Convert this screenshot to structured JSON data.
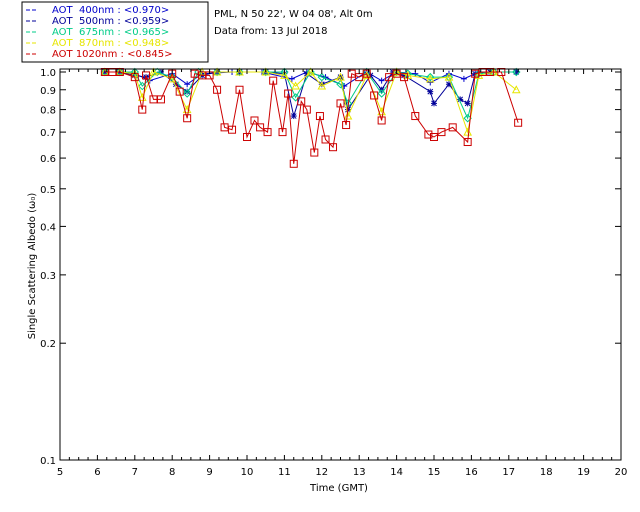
{
  "chart_data": {
    "type": "line",
    "header": {
      "site": "PML, N 50 22', W 04 08', Alt 0m",
      "date": "Data from: 13 Jul 2018"
    },
    "xlabel": "Time (GMT)",
    "ylabel": "Single Scattering Albedo (ω₀)",
    "xlim": [
      5,
      20
    ],
    "ylim": [
      0.1,
      1.0
    ],
    "yscale": "log",
    "xticks": [
      5,
      6,
      7,
      8,
      9,
      10,
      11,
      12,
      13,
      14,
      15,
      16,
      17,
      18,
      19,
      20
    ],
    "yticks": [
      {
        "v": 1.0,
        "label": "1.0"
      },
      {
        "v": 0.9,
        "label": "0.9"
      },
      {
        "v": 0.8,
        "label": "0.8"
      },
      {
        "v": 0.7,
        "label": "0.7"
      },
      {
        "v": 0.6,
        "label": "0.6"
      },
      {
        "v": 0.5,
        "label": "0.5"
      },
      {
        "v": 0.4,
        "label": "0.4"
      },
      {
        "v": 0.3,
        "label": "0.3"
      },
      {
        "v": 0.2,
        "label": "0.2"
      },
      {
        "v": 0.1,
        "label": "0.1"
      }
    ],
    "legend_position": "top-left",
    "series": [
      {
        "name": "AOT  400nm : <0.970>",
        "color": "#0000cc",
        "marker": "plus",
        "x": [
          6.2,
          6.5,
          7.0,
          7.4,
          8.0,
          8.4,
          8.8,
          9.6,
          10.4,
          11.2,
          11.6,
          12.1,
          12.6,
          13.2,
          13.6,
          14.0,
          14.5,
          14.9,
          15.4,
          15.8,
          16.2,
          17.2
        ],
        "y": [
          1.0,
          1.0,
          0.99,
          0.95,
          0.99,
          0.93,
          0.99,
          1.0,
          1.0,
          0.96,
          1.0,
          0.97,
          0.92,
          1.0,
          0.95,
          1.0,
          0.99,
          0.94,
          0.99,
          0.96,
          1.0,
          1.0
        ]
      },
      {
        "name": "AOT  500nm : <0.959>",
        "color": "#000099",
        "marker": "star",
        "x": [
          6.2,
          6.6,
          7.0,
          7.3,
          7.7,
          8.1,
          8.4,
          8.8,
          9.2,
          9.8,
          10.5,
          11.0,
          11.25,
          11.6,
          12.0,
          12.5,
          12.7,
          13.3,
          13.6,
          13.9,
          14.2,
          14.9,
          15.0,
          15.4,
          15.7,
          15.9,
          16.1,
          16.5,
          17.2
        ],
        "y": [
          1.0,
          1.0,
          0.98,
          0.97,
          1.0,
          0.93,
          0.89,
          0.98,
          1.0,
          1.0,
          1.0,
          0.99,
          0.77,
          0.99,
          0.93,
          0.97,
          0.8,
          0.98,
          0.9,
          1.0,
          0.98,
          0.89,
          0.83,
          0.93,
          0.85,
          0.83,
          0.99,
          1.0,
          1.0
        ]
      },
      {
        "name": "AOT  675nm : <0.965>",
        "color": "#00cc88",
        "marker": "diamond",
        "x": [
          6.2,
          6.6,
          7.0,
          7.2,
          7.6,
          8.0,
          8.4,
          8.7,
          9.2,
          9.8,
          10.5,
          11.0,
          11.3,
          11.7,
          12.0,
          12.5,
          12.7,
          13.2,
          13.6,
          14.0,
          14.3,
          14.9,
          15.4,
          15.9,
          16.2,
          16.6,
          17.2
        ],
        "y": [
          1.0,
          1.0,
          1.0,
          0.92,
          1.0,
          0.97,
          0.88,
          1.0,
          1.0,
          1.0,
          1.0,
          1.0,
          0.86,
          1.0,
          0.97,
          0.93,
          0.83,
          1.0,
          0.88,
          1.0,
          0.99,
          0.97,
          0.97,
          0.76,
          0.99,
          1.0,
          1.0
        ]
      },
      {
        "name": "AOT  870nm : <0.948>",
        "color": "#e6e600",
        "marker": "triangle",
        "x": [
          6.2,
          6.6,
          7.0,
          7.2,
          7.5,
          8.0,
          8.4,
          8.8,
          9.2,
          9.8,
          10.5,
          11.0,
          11.3,
          11.7,
          12.0,
          12.5,
          12.7,
          13.2,
          13.6,
          14.0,
          14.3,
          14.9,
          15.4,
          15.9,
          16.2,
          16.6,
          17.2
        ],
        "y": [
          1.0,
          1.0,
          0.99,
          0.86,
          1.0,
          0.96,
          0.8,
          1.0,
          1.0,
          1.0,
          1.0,
          0.98,
          0.92,
          1.0,
          0.92,
          0.97,
          0.77,
          0.98,
          0.79,
          1.0,
          0.98,
          0.96,
          0.97,
          0.7,
          0.98,
          1.0,
          0.9
        ]
      },
      {
        "name": "AOT 1020nm : <0.845>",
        "color": "#cc0000",
        "marker": "square",
        "x": [
          6.2,
          6.4,
          6.6,
          7.0,
          7.2,
          7.3,
          7.5,
          7.7,
          8.0,
          8.2,
          8.4,
          8.6,
          8.8,
          9.0,
          9.2,
          9.4,
          9.6,
          9.8,
          10.0,
          10.2,
          10.35,
          10.55,
          10.7,
          10.95,
          11.1,
          11.25,
          11.45,
          11.6,
          11.8,
          11.95,
          12.1,
          12.3,
          12.5,
          12.65,
          12.8,
          13.0,
          13.2,
          13.4,
          13.6,
          13.8,
          14.0,
          14.2,
          14.5,
          14.85,
          15.0,
          15.2,
          15.5,
          15.9,
          16.1,
          16.3,
          16.5,
          16.8,
          17.25
        ],
        "y": [
          1.0,
          1.0,
          1.0,
          0.97,
          0.8,
          0.98,
          0.85,
          0.85,
          0.99,
          0.89,
          0.76,
          0.99,
          0.98,
          0.98,
          0.9,
          0.72,
          0.71,
          0.9,
          0.68,
          0.75,
          0.72,
          0.7,
          0.95,
          0.7,
          0.88,
          0.58,
          0.84,
          0.8,
          0.62,
          0.77,
          0.67,
          0.64,
          0.83,
          0.73,
          0.99,
          0.97,
          0.99,
          0.87,
          0.75,
          0.97,
          0.99,
          0.97,
          0.77,
          0.69,
          0.68,
          0.7,
          0.72,
          0.66,
          0.99,
          1.0,
          1.0,
          1.0,
          0.74
        ]
      }
    ]
  }
}
